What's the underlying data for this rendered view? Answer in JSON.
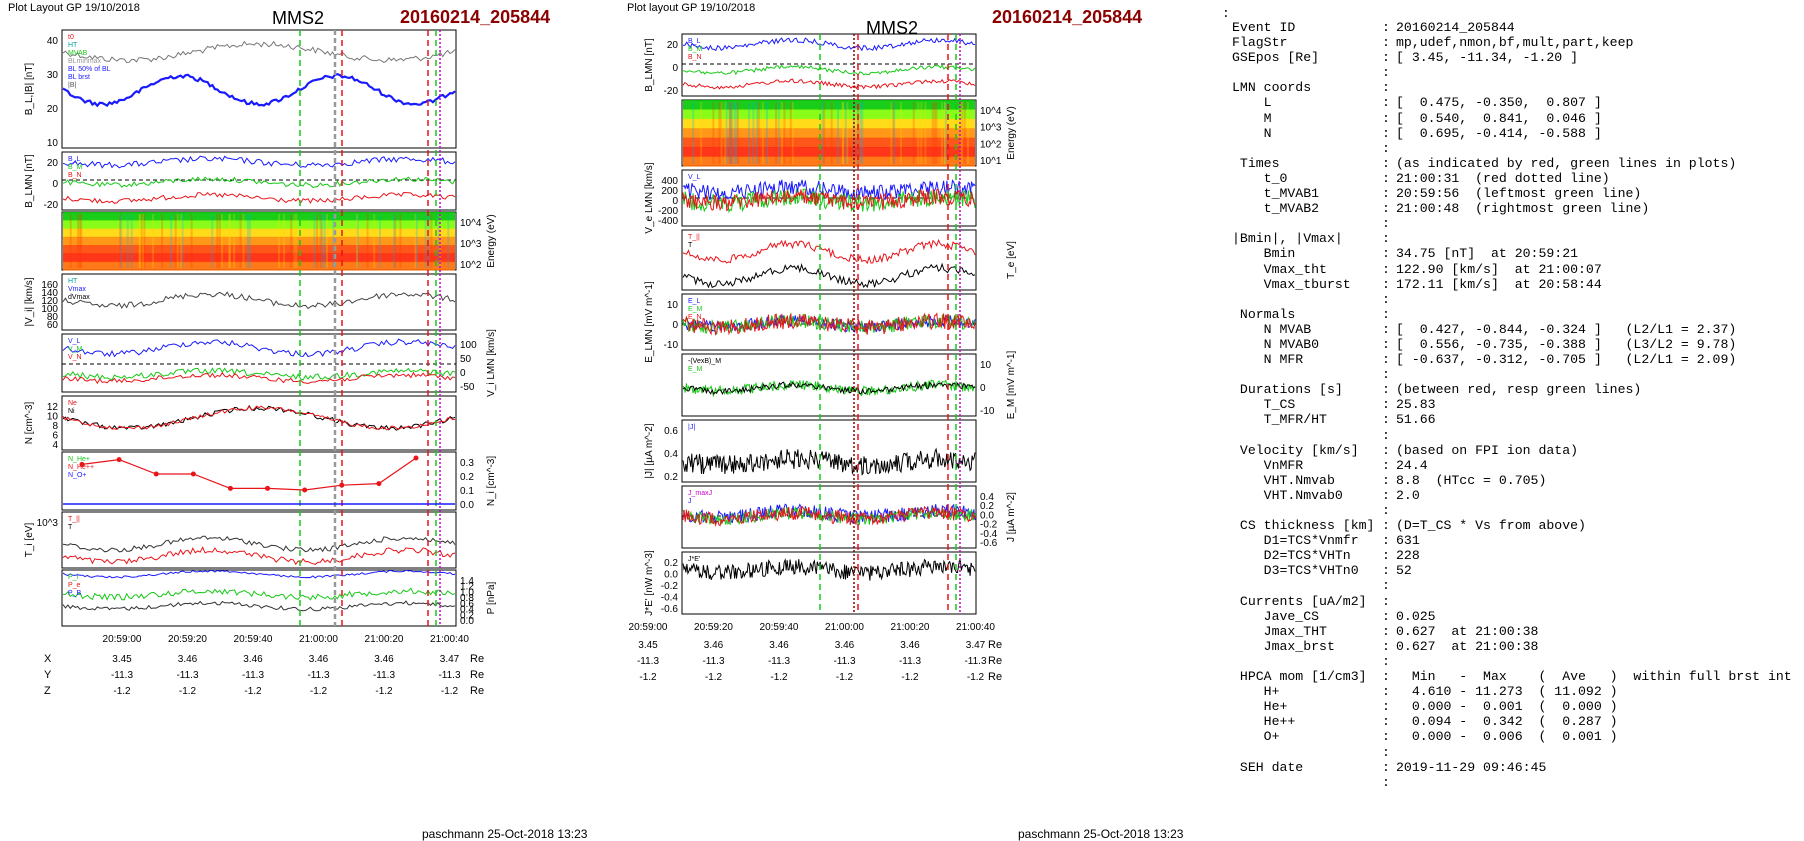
{
  "left_plot": {
    "header": "Plot Layout GP 19/10/2018",
    "title": "MMS2",
    "event_id": "20160214_205844",
    "footer": "paschmann 25-Oct-2018 13:23",
    "time_ticks": [
      "20:59:00",
      "20:59:20",
      "20:59:40",
      "21:00:00",
      "21:00:20",
      "21:00:40"
    ],
    "panels": [
      {
        "ylabel": "B_L,|B| [nT]",
        "ticks": [
          "40",
          "30",
          "20",
          "10"
        ],
        "legend": [
          "t0",
          "HT",
          "MVAB",
          "BLminmax",
          "BL 50% of BL",
          "BL brst",
          "|B|"
        ]
      },
      {
        "ylabel": "B_LMN [nT]",
        "ticks": [
          "20",
          "0",
          "-20"
        ],
        "legend": [
          "B_L",
          "B_M",
          "B_N"
        ]
      },
      {
        "ylabel": "Energy (eV)",
        "ticks": [
          "10^4",
          "10^3",
          "10^2"
        ],
        "legend": []
      },
      {
        "ylabel": "|V_i| [km/s]",
        "ticks": [
          "160",
          "140",
          "120",
          "100",
          "80",
          "60"
        ],
        "legend": [
          "HT",
          "Vmax",
          "dVmax"
        ]
      },
      {
        "ylabel": "V_i LMN [km/s]",
        "ticks": [
          "100",
          "50",
          "0",
          "-50"
        ],
        "legend": [
          "V_L",
          "V_M",
          "V_N"
        ]
      },
      {
        "ylabel": "N [cm^-3]",
        "ticks": [
          "12",
          "10",
          "8",
          "6",
          "4"
        ],
        "legend": [
          "Ne",
          "Ni"
        ]
      },
      {
        "ylabel": "N_i [cm^-3]",
        "ticks": [
          "0.3",
          "0.2",
          "0.1",
          "0.0"
        ],
        "legend": [
          "N_He+",
          "N_He++",
          "N_O+"
        ]
      },
      {
        "ylabel": "T_i [eV]",
        "ticks": [
          "10^3"
        ],
        "legend": [
          "T_||",
          "T"
        ]
      },
      {
        "ylabel": "P [nPa]",
        "ticks": [
          "1.4",
          "1.2",
          "1.0",
          "0.8",
          "0.6",
          "0.4",
          "0.2",
          "0.0"
        ],
        "legend": [
          "P_i",
          "P_e",
          "P_B"
        ]
      }
    ],
    "coords": {
      "X": {
        "values": [
          "3.45",
          "3.46",
          "3.46",
          "3.46",
          "3.46",
          "3.47"
        ],
        "unit": "Re"
      },
      "Y": {
        "values": [
          "-11.3",
          "-11.3",
          "-11.3",
          "-11.3",
          "-11.3",
          "-11.3"
        ],
        "unit": "Re"
      },
      "Z": {
        "values": [
          "-1.2",
          "-1.2",
          "-1.2",
          "-1.2",
          "-1.2",
          "-1.2"
        ],
        "unit": "Re"
      }
    }
  },
  "right_plot": {
    "header": "Plot layout GP 19/10/2018",
    "title": "MMS2",
    "event_id": "20160214_205844",
    "footer": "paschmann 25-Oct-2018 13:23",
    "time_ticks": [
      "20:59:00",
      "20:59:20",
      "20:59:40",
      "21:00:00",
      "21:00:20",
      "21:00:40"
    ],
    "panels": [
      {
        "ylabel": "B_LMN [nT]",
        "ticks": [
          "20",
          "0",
          "-20"
        ],
        "legend": [
          "B_L",
          "B_M",
          "B_N"
        ]
      },
      {
        "ylabel": "Energy (eV)",
        "ticks": [
          "10^4",
          "10^3",
          "10^2",
          "10^1"
        ],
        "legend": []
      },
      {
        "ylabel": "V_e LMN [km/s]",
        "ticks": [
          "400",
          "200",
          "0",
          "-200",
          "-400"
        ],
        "legend": [
          "V_L"
        ]
      },
      {
        "ylabel": "T_e [eV]",
        "ticks": [],
        "legend": [
          "T_||",
          "T"
        ]
      },
      {
        "ylabel": "E_LMN [mV m^-1]",
        "ticks": [
          "10",
          "0",
          "-10"
        ],
        "legend": [
          "E_L",
          "E_M",
          "E_N"
        ]
      },
      {
        "ylabel": "E_M [mV m^-1]",
        "ticks": [
          "10",
          "0",
          "-10"
        ],
        "legend": [
          "-(VexB)_M",
          "E_M"
        ]
      },
      {
        "ylabel": "|J| [µA m^-2]",
        "ticks": [
          "0.6",
          "0.4",
          "0.2"
        ],
        "legend": [
          "|J|"
        ]
      },
      {
        "ylabel": "J [µA m^-2]",
        "ticks": [
          "0.4",
          "0.2",
          "0.0",
          "-0.2",
          "-0.4",
          "-0.6"
        ],
        "legend": [
          "J_maxJ",
          "J"
        ]
      },
      {
        "ylabel": "J*E' [nW m^-3]",
        "ticks": [
          "0.2",
          "0.0",
          "-0.2",
          "-0.4",
          "-0.6"
        ],
        "legend": [
          "J*E'"
        ]
      }
    ],
    "coords": {
      "X": {
        "values": [
          "3.45",
          "3.46",
          "3.46",
          "3.46",
          "3.46",
          "3.47"
        ],
        "unit": "Re"
      },
      "Y": {
        "values": [
          "-11.3",
          "-11.3",
          "-11.3",
          "-11.3",
          "-11.3",
          "-11.3"
        ],
        "unit": "Re"
      },
      "Z": {
        "values": [
          "-1.2",
          "-1.2",
          "-1.2",
          "-1.2",
          "-1.2",
          "-1.2"
        ],
        "unit": "Re"
      }
    }
  },
  "summary": {
    "top_colon": ":",
    "lines": [
      {
        "k": "Event ID",
        "v": "20160214_205844"
      },
      {
        "k": "FlagStr",
        "v": "mp,udef,nmon,bf,mult,part,keep"
      },
      {
        "k": "GSEpos [Re]",
        "v": "[ 3.45, -11.34, -1.20 ]"
      },
      {
        "k": "",
        "v": ""
      },
      {
        "k": "LMN coords",
        "v": ""
      },
      {
        "k": "    L",
        "v": "[  0.475, -0.350,  0.807 ]"
      },
      {
        "k": "    M",
        "v": "[  0.540,  0.841,  0.046 ]"
      },
      {
        "k": "    N",
        "v": "[  0.695, -0.414, -0.588 ]"
      },
      {
        "k": "",
        "v": ""
      },
      {
        "k": " Times",
        "v": "(as indicated by red, green lines in plots)"
      },
      {
        "k": "    t_0",
        "v": "21:00:31  (red dotted line)"
      },
      {
        "k": "    t_MVAB1",
        "v": "20:59:56  (leftmost green line)"
      },
      {
        "k": "    t_MVAB2",
        "v": "21:00:48  (rightmost green line)"
      },
      {
        "k": "",
        "v": ""
      },
      {
        "k": "|Bmin|, |Vmax|",
        "v": ""
      },
      {
        "k": "    Bmin",
        "v": "34.75 [nT]  at 20:59:21"
      },
      {
        "k": "    Vmax_tht",
        "v": "122.90 [km/s]  at 21:00:07"
      },
      {
        "k": "    Vmax_tburst",
        "v": "172.11 [km/s]  at 20:58:44"
      },
      {
        "k": "",
        "v": ""
      },
      {
        "k": " Normals",
        "v": ""
      },
      {
        "k": "    N MVAB",
        "v": "[  0.427, -0.844, -0.324 ]   (L2/L1 = 2.37)"
      },
      {
        "k": "    N MVAB0",
        "v": "[  0.556, -0.735, -0.388 ]   (L3/L2 = 9.78)"
      },
      {
        "k": "    N MFR",
        "v": "[ -0.637, -0.312, -0.705 ]   (L2/L1 = 2.09)"
      },
      {
        "k": "",
        "v": ""
      },
      {
        "k": " Durations [s]",
        "v": "(between red, resp green lines)"
      },
      {
        "k": "    T_CS",
        "v": "25.83"
      },
      {
        "k": "    T_MFR/HT",
        "v": "51.66"
      },
      {
        "k": "",
        "v": ""
      },
      {
        "k": " Velocity [km/s]",
        "v": "(based on FPI ion data)"
      },
      {
        "k": "    VnMFR",
        "v": "24.4"
      },
      {
        "k": "    VHT.Nmvab",
        "v": "8.8  (HTcc = 0.705)"
      },
      {
        "k": "    VHT.Nmvab0",
        "v": "2.0"
      },
      {
        "k": "",
        "v": ""
      },
      {
        "k": " CS thickness [km]",
        "v": "(D=T_CS * Vs from above)"
      },
      {
        "k": "    D1=TCS*Vnmfr",
        "v": "631"
      },
      {
        "k": "    D2=TCS*VHTn",
        "v": "228"
      },
      {
        "k": "    D3=TCS*VHTn0",
        "v": "52"
      },
      {
        "k": "",
        "v": ""
      },
      {
        "k": " Currents [uA/m2]",
        "v": ""
      },
      {
        "k": "    Jave_CS",
        "v": "0.025"
      },
      {
        "k": "    Jmax_THT",
        "v": "0.627  at 21:00:38"
      },
      {
        "k": "    Jmax_brst",
        "v": "0.627  at 21:00:38"
      },
      {
        "k": "",
        "v": ""
      },
      {
        "k": " HPCA mom [1/cm3]",
        "v": "  Min   -  Max    (  Ave   )  within full brst int"
      },
      {
        "k": "    H+",
        "v": "  4.610 - 11.273  ( 11.092 )"
      },
      {
        "k": "    He+",
        "v": "  0.000 -  0.001  (  0.000 )"
      },
      {
        "k": "    He++",
        "v": "  0.094 -  0.342  (  0.287 )"
      },
      {
        "k": "    O+",
        "v": "  0.000 -  0.006  (  0.001 )"
      },
      {
        "k": "",
        "v": ""
      },
      {
        "k": " SEH date",
        "v": "2019-11-29 09:46:45"
      },
      {
        "k": "",
        "v": ""
      }
    ]
  },
  "chart_data": [
    {
      "type": "line",
      "title": "MMS2",
      "subtitle": "20160214_205844",
      "x_ticks": [
        "20:59:00",
        "20:59:20",
        "20:59:40",
        "21:00:00",
        "21:00:20",
        "21:00:40"
      ],
      "series": [
        {
          "name": "N_He++",
          "x": [
            "20:59:00",
            "20:59:10",
            "20:59:20",
            "20:59:30",
            "20:59:40",
            "20:59:50",
            "21:00:00",
            "21:00:10",
            "21:00:20",
            "21:00:30"
          ],
          "values": [
            0.26,
            0.29,
            0.2,
            0.2,
            0.11,
            0.11,
            0.1,
            0.13,
            0.14,
            0.3
          ]
        }
      ]
    },
    {
      "type": "line",
      "title": "MMS2",
      "subtitle": "20160214_205844",
      "x_ticks": [
        "20:59:00",
        "20:59:20",
        "20:59:40",
        "21:00:00",
        "21:00:20",
        "21:00:40"
      ]
    }
  ],
  "colors": {
    "red": "#e8141a",
    "green": "#17c817",
    "blue": "#1a1aff",
    "darkred": "#8b0000",
    "magenta": "#cc00cc"
  }
}
